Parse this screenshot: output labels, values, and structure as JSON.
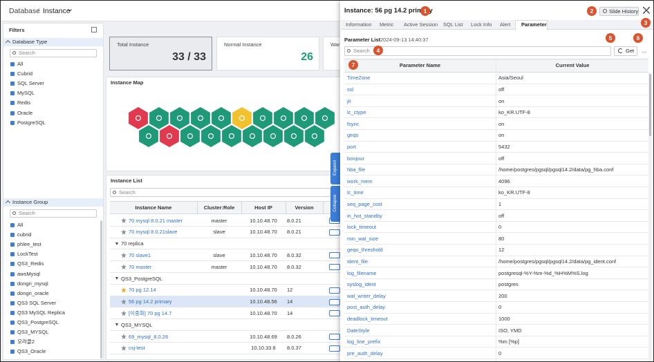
{
  "breadcrumb": {
    "root": "Database",
    "separator": "/",
    "current": "Instance"
  },
  "filters": {
    "title": "Filters",
    "database_type": {
      "title": "Database Type",
      "search_placeholder": "Search",
      "items": [
        "All",
        "Cubrid",
        "SQL Server",
        "MySQL",
        "Redis",
        "Oracle",
        "PostgreSQL"
      ]
    },
    "instance_group": {
      "title": "Instance Group",
      "search_placeholder": "Search",
      "items": [
        "All",
        "cubrid",
        "phlee_test",
        "LockTest",
        "QS3_Redis",
        "awsMysql",
        "dongri_mysql",
        "dongri_oracle",
        "QS3 SQL Server",
        "QS3 MySQL Replica",
        "QS3_PostgreSQL",
        "QS3_MYSQL",
        "오라클2",
        "QS3_Oracle"
      ]
    }
  },
  "summary": {
    "cards": [
      {
        "label": "Total Instance",
        "value": "33 / 33"
      },
      {
        "label": "Normal Instance",
        "value": "26"
      },
      {
        "label": "Warn"
      }
    ]
  },
  "instance_map": {
    "title": "Instance Map"
  },
  "instance_list": {
    "title": "Instance List",
    "search_placeholder": "Search",
    "columns": [
      "Instance Name",
      "Cluster:Role",
      "Host IP",
      "Version"
    ],
    "rows": [
      {
        "name": "70 mysql 8.0.21 master",
        "role": "master",
        "ip": "10.10.48.70",
        "version": "8.0.21"
      },
      {
        "name": "70 mysql 8.0.21slave",
        "role": "slave",
        "ip": "10.10.48.70",
        "version": "8.0.21"
      },
      {
        "group": "70 replica"
      },
      {
        "name": "70 slave1",
        "role": "slave",
        "ip": "10.10.48.70",
        "version": "8.0.32"
      },
      {
        "name": "70 master",
        "role": "master",
        "ip": "10.10.48.70",
        "version": "8.0.32"
      },
      {
        "group": "QS3_PostgreSQL"
      },
      {
        "name": "70 pg 12.14",
        "ip": "10.10.48.70",
        "version": "12",
        "favorite": true
      },
      {
        "name": "56 pg 14.2 primary",
        "ip": "10.10.48.56",
        "version": "14",
        "selected": true
      },
      {
        "name": "[이중화] 70 pg 14.7",
        "ip": "10.10.48.70",
        "version": "14"
      },
      {
        "group": "QS3_MYSQL"
      },
      {
        "name": "69_mysql_8.0.26",
        "ip": "10.10.48.69",
        "version": "8.0.26"
      },
      {
        "name": "csj-test",
        "ip": "10.10.33.8",
        "version": "8.0.37"
      }
    ]
  },
  "side_tabs": {
    "expand": "Expand",
    "collapse": "Collapse"
  },
  "panel": {
    "title": "Instance: 56 pg 14.2 primary",
    "history_button": "Slide History",
    "tabs": [
      "Information",
      "Metric",
      "Active Session",
      "SQL List",
      "Lock Info",
      "Alert",
      "Parameter"
    ],
    "active_tab": 6,
    "list_title": "Parameter List",
    "timestamp": "2024-09-13 14:40:37",
    "search_placeholder": "Search",
    "get_button": "Get",
    "more": "...",
    "columns": [
      "Parameter Name",
      "Current Value"
    ],
    "rows": [
      [
        "TimeZone",
        "Asia/Seoul"
      ],
      [
        "ssl",
        "off"
      ],
      [
        "jit",
        "on"
      ],
      [
        "lc_ctype",
        "ko_KR.UTF-8"
      ],
      [
        "fsync",
        "on"
      ],
      [
        "geqo",
        "on"
      ],
      [
        "port",
        "5432"
      ],
      [
        "bonjour",
        "off"
      ],
      [
        "hba_file",
        "/home/postgres/pgsql/pgsql14.2/data/pg_hba.conf"
      ],
      [
        "work_mem",
        "4096"
      ],
      [
        "lc_time",
        "ko_KR.UTF-8"
      ],
      [
        "seq_page_cost",
        "1"
      ],
      [
        "in_hot_standby",
        "off"
      ],
      [
        "lock_timeout",
        "0"
      ],
      [
        "min_wal_size",
        "80"
      ],
      [
        "geqo_threshold",
        "12"
      ],
      [
        "ident_file",
        "/home/postgres/pgsql/pgsql14.2/data/pg_ident.conf"
      ],
      [
        "log_filename",
        "postgresql-%Y-%m-%d_%H%M%S.log"
      ],
      [
        "syslog_ident",
        "postgres"
      ],
      [
        "wal_writer_delay",
        "200"
      ],
      [
        "post_auth_delay",
        "0"
      ],
      [
        "deadlock_timeout",
        "1000"
      ],
      [
        "DateStyle",
        "ISO, YMD"
      ],
      [
        "log_line_prefix",
        "%m [%p]"
      ],
      [
        "pre_auth_delay",
        "0"
      ]
    ]
  },
  "annotations": [
    "1",
    "2",
    "3",
    "4",
    "5",
    "6",
    "7"
  ]
}
